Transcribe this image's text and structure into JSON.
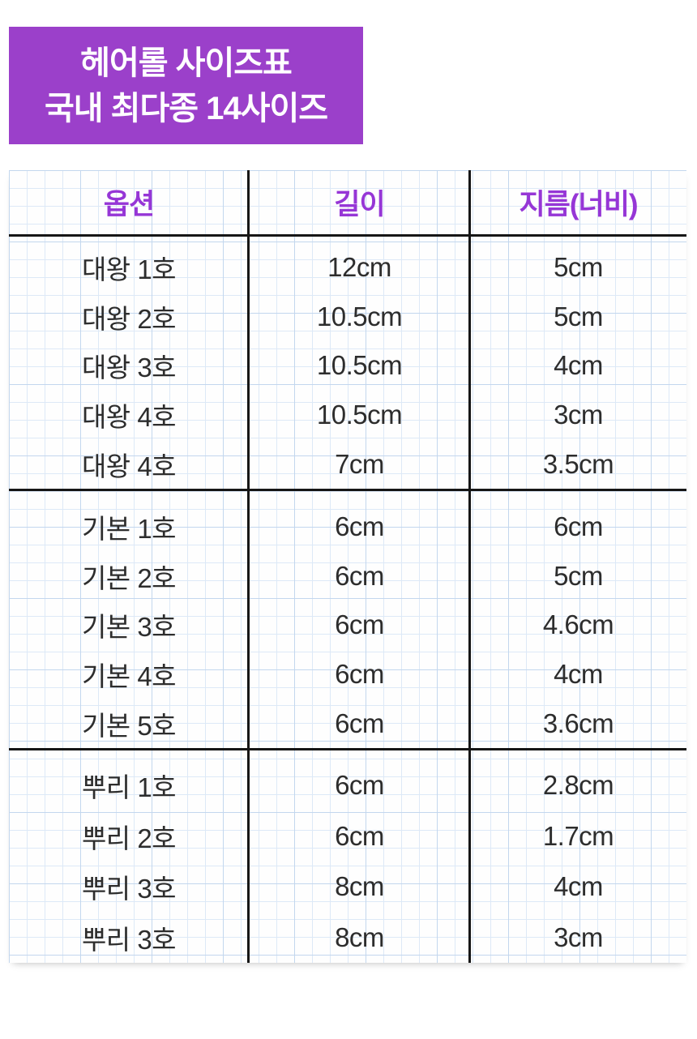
{
  "title": {
    "line1": "헤어롤 사이즈표",
    "line2": "국내 최다종 14사이즈"
  },
  "colors": {
    "title_bg": "#9b40ca",
    "header_text": "#9636d6",
    "body_text": "#2d2d2d",
    "line": "#161616",
    "grid_minor": "#dde9f7",
    "grid_major": "#c3d7ee"
  },
  "chart_data": {
    "type": "table",
    "title": "헤어롤 사이즈표",
    "subtitle": "국내 최다종 14사이즈",
    "columns": [
      "옵션",
      "길이",
      "지름(너비)"
    ],
    "groups": [
      {
        "rows": [
          [
            "대왕 1호",
            "12cm",
            "5cm"
          ],
          [
            "대왕 2호",
            "10.5cm",
            "5cm"
          ],
          [
            "대왕 3호",
            "10.5cm",
            "4cm"
          ],
          [
            "대왕 4호",
            "10.5cm",
            "3cm"
          ],
          [
            "대왕 4호",
            "7cm",
            "3.5cm"
          ]
        ]
      },
      {
        "rows": [
          [
            "기본 1호",
            "6cm",
            "6cm"
          ],
          [
            "기본 2호",
            "6cm",
            "5cm"
          ],
          [
            "기본 3호",
            "6cm",
            "4.6cm"
          ],
          [
            "기본 4호",
            "6cm",
            "4cm"
          ],
          [
            "기본 5호",
            "6cm",
            "3.6cm"
          ]
        ]
      },
      {
        "rows": [
          [
            "뿌리 1호",
            "6cm",
            "2.8cm"
          ],
          [
            "뿌리 2호",
            "6cm",
            "1.7cm"
          ],
          [
            "뿌리 3호",
            "8cm",
            "4cm"
          ],
          [
            "뿌리 3호",
            "8cm",
            "3cm"
          ]
        ]
      }
    ]
  }
}
